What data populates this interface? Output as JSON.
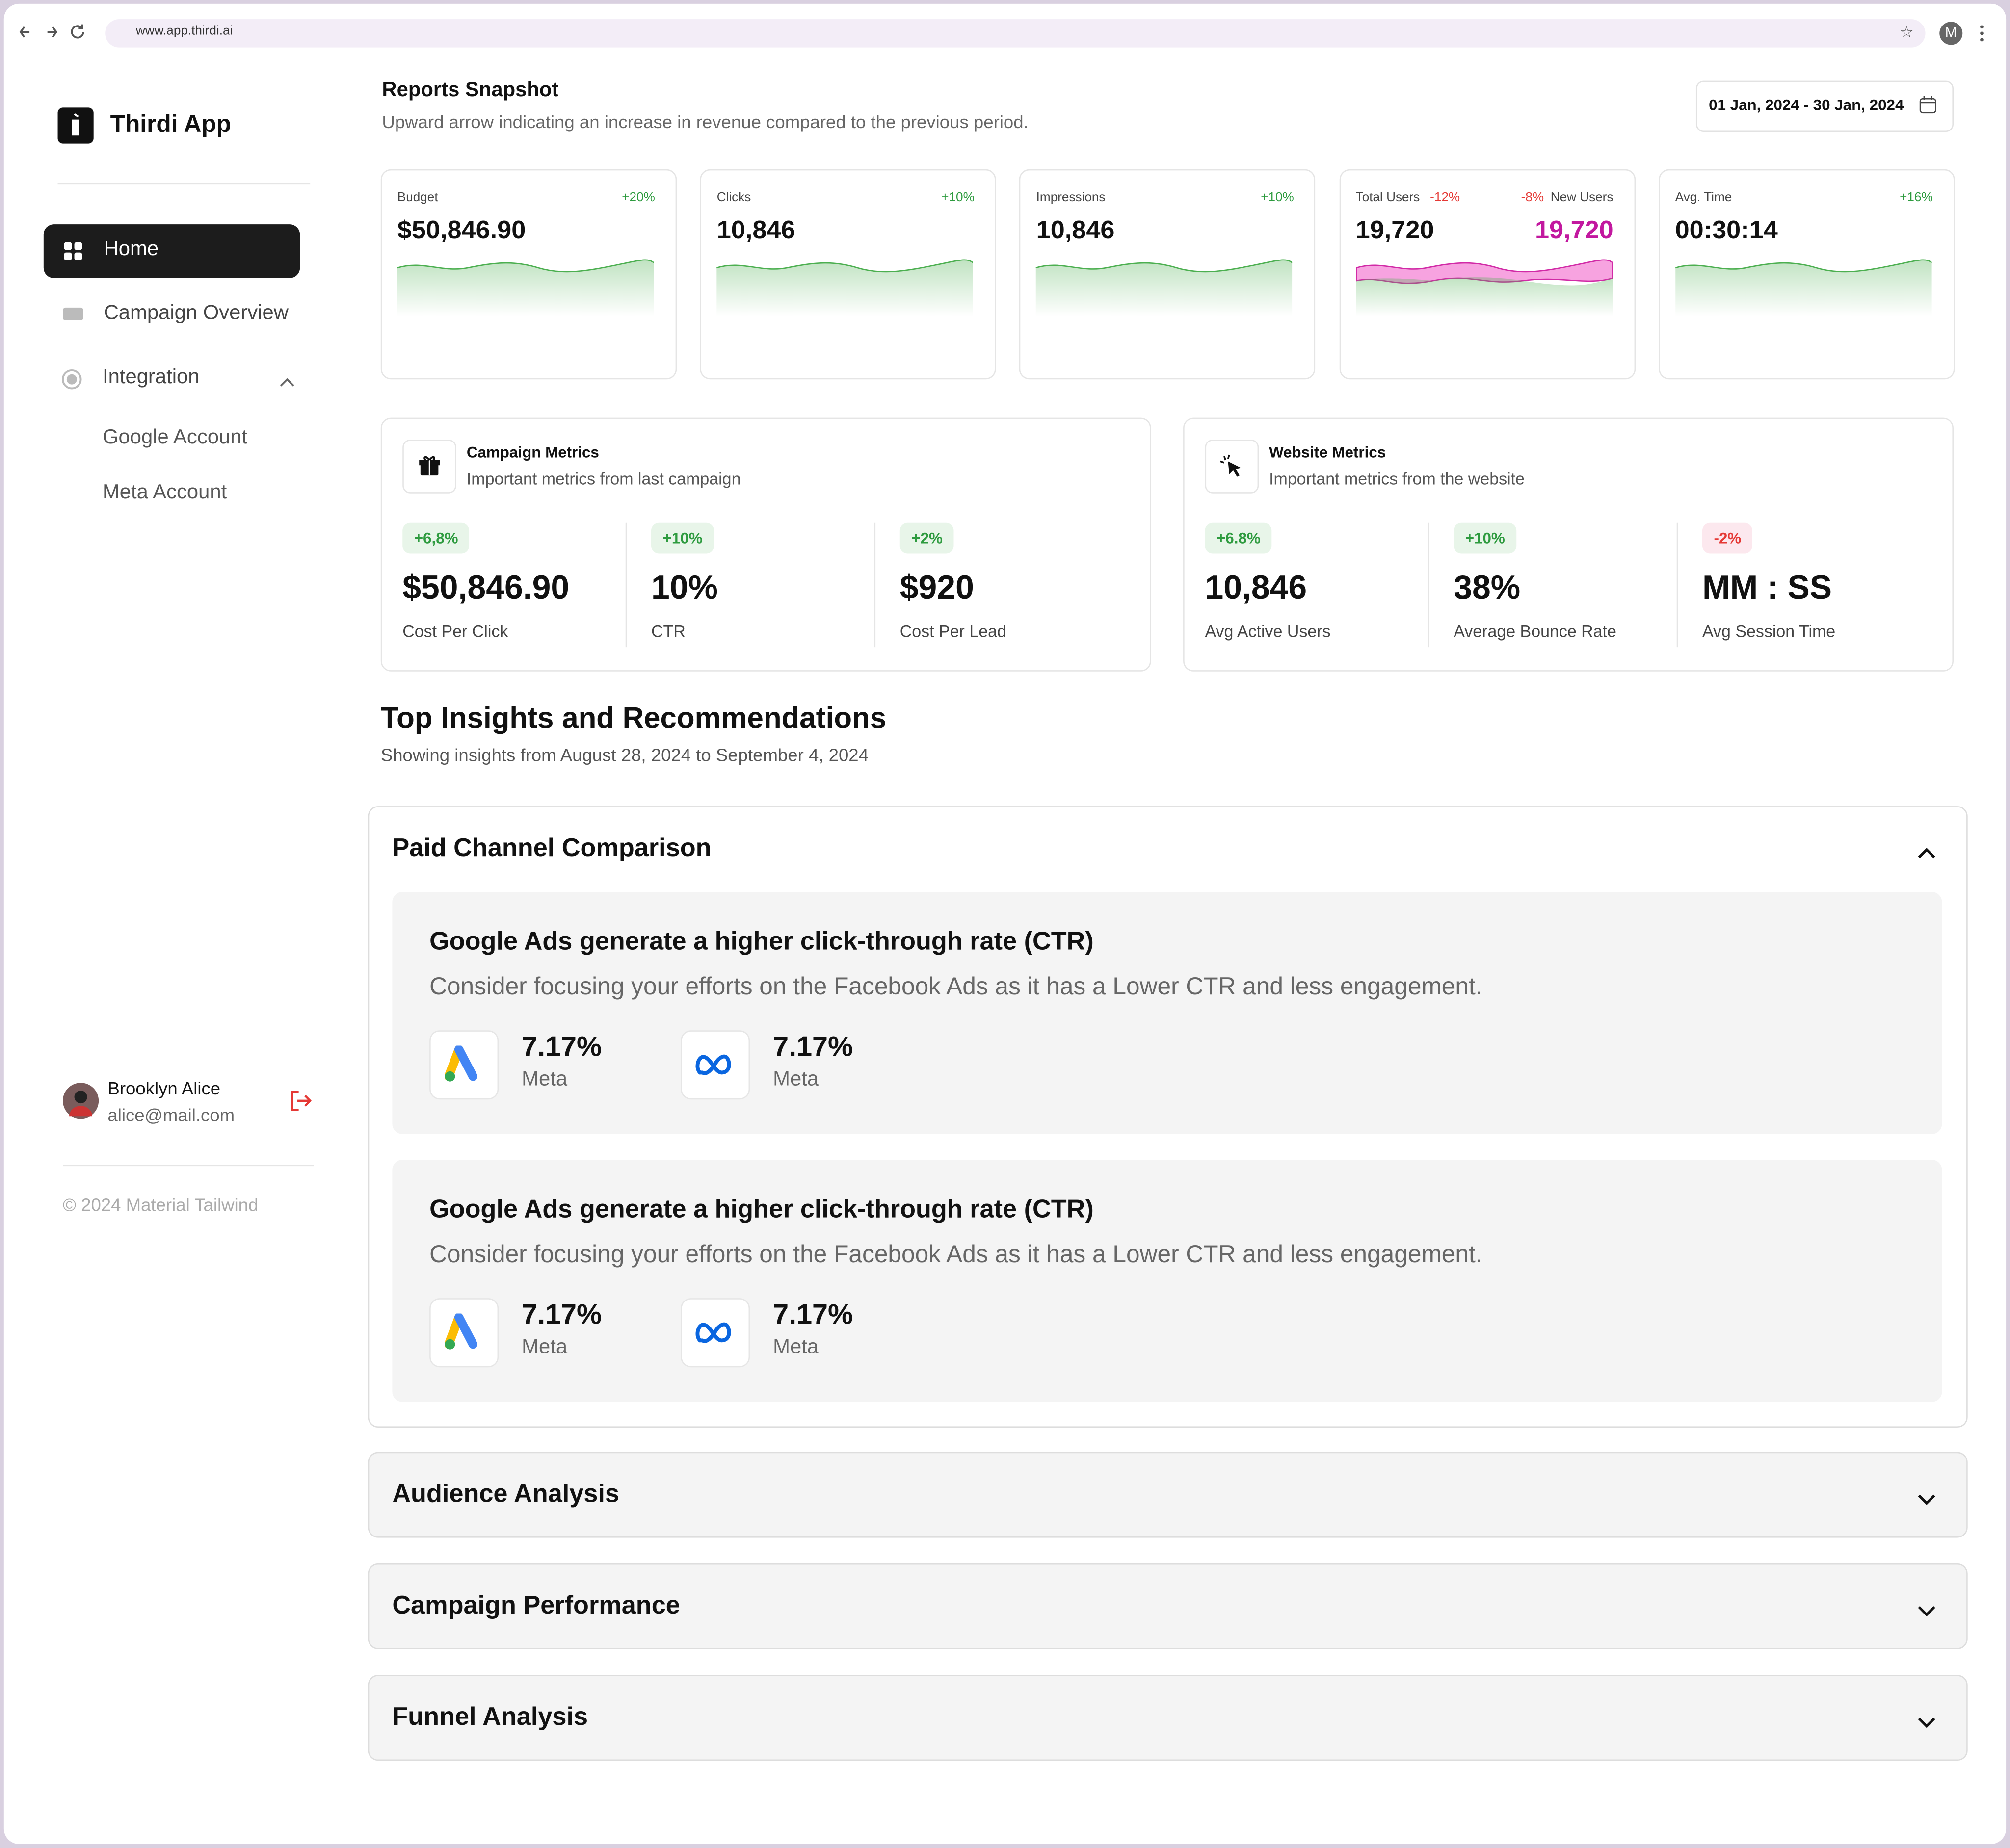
{
  "browser": {
    "url": "www.app.thirdi.ai",
    "avatar": "M"
  },
  "sidebar": {
    "brand": "Thirdi App",
    "nav": [
      "Home",
      "Campaign Overview",
      "Integration"
    ],
    "subnav": [
      "Google Account",
      "Meta Account"
    ],
    "user": {
      "name": "Brooklyn Alice",
      "email": "alice@mail.com"
    },
    "footer": "© 2024 Material Tailwind"
  },
  "header": {
    "title": "Reports Snapshot",
    "subtitle": "Upward arrow indicating an increase in revenue compared to the previous period.",
    "date_range": "01 Jan, 2024 - 30 Jan, 2024"
  },
  "stat_cards": [
    {
      "label": "Budget",
      "change": "+20%",
      "value": "$50,846.90"
    },
    {
      "label": "Clicks",
      "change": "+10%",
      "value": "10,846"
    },
    {
      "label": "Impressions",
      "change": "+10%",
      "value": "10,846"
    },
    {
      "label": "Total Users",
      "change": "-12%",
      "value": "19,720",
      "label2": "New Users",
      "change2": "-8%",
      "value2": "19,720"
    },
    {
      "label": "Avg. Time",
      "change": "+16%",
      "value": "00:30:14"
    }
  ],
  "metric_panels": [
    {
      "title": "Campaign Metrics",
      "subtitle": "Important metrics from last campaign",
      "metrics": [
        {
          "change": "+6,8%",
          "value": "$50,846.90",
          "label": "Cost Per Click"
        },
        {
          "change": "+10%",
          "value": "10%",
          "label": "CTR"
        },
        {
          "change": "+2%",
          "value": "$920",
          "label": "Cost Per Lead"
        }
      ]
    },
    {
      "title": "Website Metrics",
      "subtitle": "Important metrics from the website",
      "metrics": [
        {
          "change": "+6.8%",
          "value": "10,846",
          "label": "Avg Active Users"
        },
        {
          "change": "+10%",
          "value": "38%",
          "label": "Average Bounce Rate"
        },
        {
          "change": "-2%",
          "value": "MM : SS",
          "label": "Avg Session Time"
        }
      ]
    }
  ],
  "insights": {
    "title": "Top Insights and Recommendations",
    "subtitle": "Showing insights from August 28, 2024 to September 4, 2024"
  },
  "sections": [
    {
      "title": "Paid Channel Comparison",
      "items": [
        {
          "heading": "Google Ads generate a higher click-through rate (CTR)",
          "text": "Consider focusing your efforts on the Facebook Ads as it has a Lower CTR and less engagement.",
          "stats": [
            {
              "value": "7.17%",
              "label": "Meta"
            },
            {
              "value": "7.17%",
              "label": "Meta"
            }
          ]
        },
        {
          "heading": "Google Ads generate a higher click-through rate (CTR)",
          "text": "Consider focusing your efforts on the Facebook Ads as it has a Lower CTR and less engagement.",
          "stats": [
            {
              "value": "7.17%",
              "label": "Meta"
            },
            {
              "value": "7.17%",
              "label": "Meta"
            }
          ]
        }
      ]
    },
    {
      "title": "Audience Analysis"
    },
    {
      "title": "Campaign Performance"
    },
    {
      "title": "Funnel Analysis"
    }
  ]
}
